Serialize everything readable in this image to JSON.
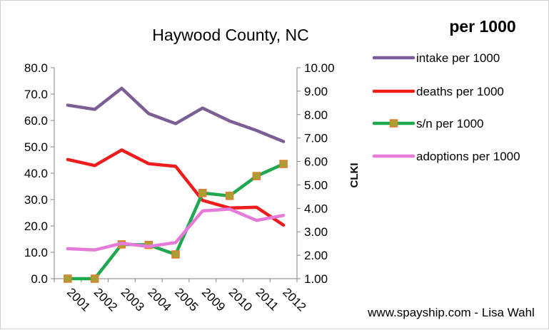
{
  "chart_data": {
    "type": "line",
    "title": "Haywood County, NC",
    "corner_label": "per 1000",
    "credit": "www.spayship.com  - Lisa Wahl",
    "categories": [
      "2001",
      "2002",
      "2003",
      "2004",
      "2005",
      "2009",
      "2010",
      "2011",
      "2012"
    ],
    "y_left": {
      "label": "",
      "ylim": [
        0,
        80
      ],
      "ticks": [
        "0.0",
        "10.0",
        "20.0",
        "30.0",
        "40.0",
        "50.0",
        "60.0",
        "70.0",
        "80.0"
      ]
    },
    "y_right": {
      "label": "CLKI",
      "ylim": [
        1,
        10
      ],
      "ticks": [
        "1.00",
        "2.00",
        "3.00",
        "4.00",
        "5.00",
        "6.00",
        "7.00",
        "8.00",
        "9.00",
        "10.00"
      ]
    },
    "grid": false,
    "legend_position": "right",
    "series": [
      {
        "name": "intake  per 1000",
        "color": "#7b5e95",
        "marker": "none",
        "values": [
          65.8,
          64.2,
          72.2,
          62.6,
          58.8,
          64.7,
          59.8,
          56.2,
          52.0
        ]
      },
      {
        "name": "deaths per 1000",
        "color": "#ee1c1c",
        "marker": "none",
        "values": [
          45.2,
          42.9,
          48.8,
          43.6,
          42.6,
          29.7,
          26.8,
          27.1,
          20.3
        ]
      },
      {
        "name": "s/n per 1000",
        "color": "#1fa84e",
        "marker": "square",
        "marker_fill": "#a7a135",
        "marker_stroke": "#e07b2a",
        "values": [
          0.0,
          0.0,
          13.0,
          12.8,
          9.2,
          32.5,
          31.4,
          38.9,
          43.5
        ]
      },
      {
        "name": "adoptions per 1000",
        "color": "#e67ad8",
        "marker": "none",
        "values": [
          11.4,
          10.9,
          13.4,
          12.2,
          13.7,
          25.7,
          26.4,
          22.1,
          24.0
        ]
      }
    ]
  }
}
